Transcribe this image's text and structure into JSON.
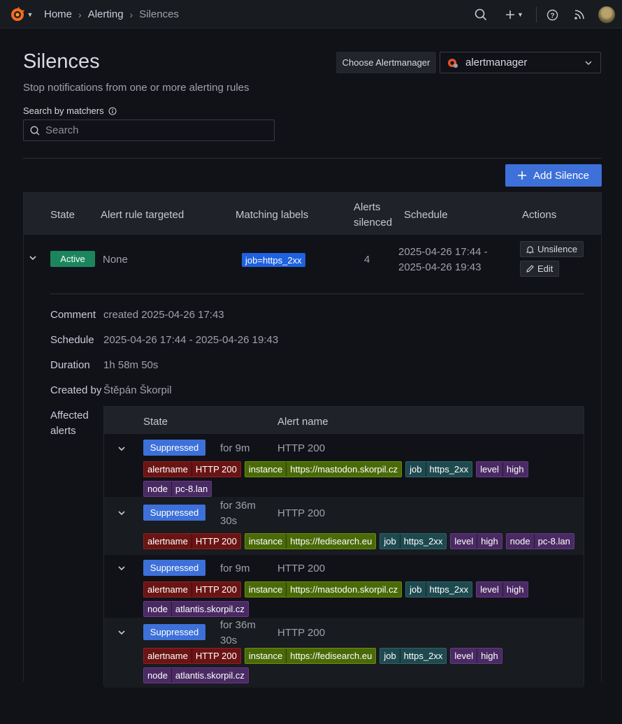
{
  "topbar": {
    "breadcrumbs": [
      "Home",
      "Alerting",
      "Silences"
    ]
  },
  "page": {
    "title": "Silences",
    "subtitle": "Stop notifications from one or more alerting rules",
    "choose_label": "Choose Alertmanager",
    "alertmanager_value": "alertmanager",
    "search_label": "Search by matchers",
    "search_placeholder": "Search",
    "add_button": "Add Silence"
  },
  "table": {
    "headers": {
      "state": "State",
      "rule": "Alert rule targeted",
      "labels": "Matching labels",
      "silenced_1": "Alerts",
      "silenced_2": "silenced",
      "schedule": "Schedule",
      "actions": "Actions"
    },
    "row": {
      "state": "Active",
      "rule": "None",
      "matcher": "job=https_2xx",
      "count": "4",
      "schedule_1": "2025-04-26 17:44 -",
      "schedule_2": "2025-04-26 19:43",
      "unsilence": "Unsilence",
      "edit": "Edit"
    },
    "details": {
      "comment_label": "Comment",
      "comment_value": "created 2025-04-26 17:43",
      "schedule_label": "Schedule",
      "schedule_value": "2025-04-26 17:44 - 2025-04-26 19:43",
      "duration_label": "Duration",
      "duration_value": "1h 58m 50s",
      "created_label": "Created by",
      "created_value": "Štěpán Škorpil",
      "affected_1": "Affected",
      "affected_2": "alerts"
    }
  },
  "affected": {
    "headers": {
      "state": "State",
      "name": "Alert name"
    },
    "rows": [
      {
        "state": "Suppressed",
        "for_1": "for 9m",
        "for_2": "",
        "name": "HTTP 200",
        "labels": [
          [
            "alertname",
            "HTTP 200"
          ],
          [
            "instance",
            "https://mastodon.skorpil.cz"
          ],
          [
            "job",
            "https_2xx"
          ],
          [
            "level",
            "high"
          ],
          [
            "node",
            "pc-8.lan"
          ]
        ]
      },
      {
        "state": "Suppressed",
        "for_1": "for 36m",
        "for_2": "30s",
        "name": "HTTP 200",
        "labels": [
          [
            "alertname",
            "HTTP 200"
          ],
          [
            "instance",
            "https://fedisearch.eu"
          ],
          [
            "job",
            "https_2xx"
          ],
          [
            "level",
            "high"
          ],
          [
            "node",
            "pc-8.lan"
          ]
        ]
      },
      {
        "state": "Suppressed",
        "for_1": "for 9m",
        "for_2": "",
        "name": "HTTP 200",
        "labels": [
          [
            "alertname",
            "HTTP 200"
          ],
          [
            "instance",
            "https://mastodon.skorpil.cz"
          ],
          [
            "job",
            "https_2xx"
          ],
          [
            "level",
            "high"
          ],
          [
            "node",
            "atlantis.skorpil.cz"
          ]
        ]
      },
      {
        "state": "Suppressed",
        "for_1": "for 36m",
        "for_2": "30s",
        "name": "HTTP 200",
        "labels": [
          [
            "alertname",
            "HTTP 200"
          ],
          [
            "instance",
            "https://fedisearch.eu"
          ],
          [
            "job",
            "https_2xx"
          ],
          [
            "level",
            "high"
          ],
          [
            "node",
            "atlantis.skorpil.cz"
          ]
        ]
      }
    ]
  },
  "colors": {
    "active": "#1b855e",
    "primary": "#3d71d9",
    "matcher": "#1f62e0"
  }
}
